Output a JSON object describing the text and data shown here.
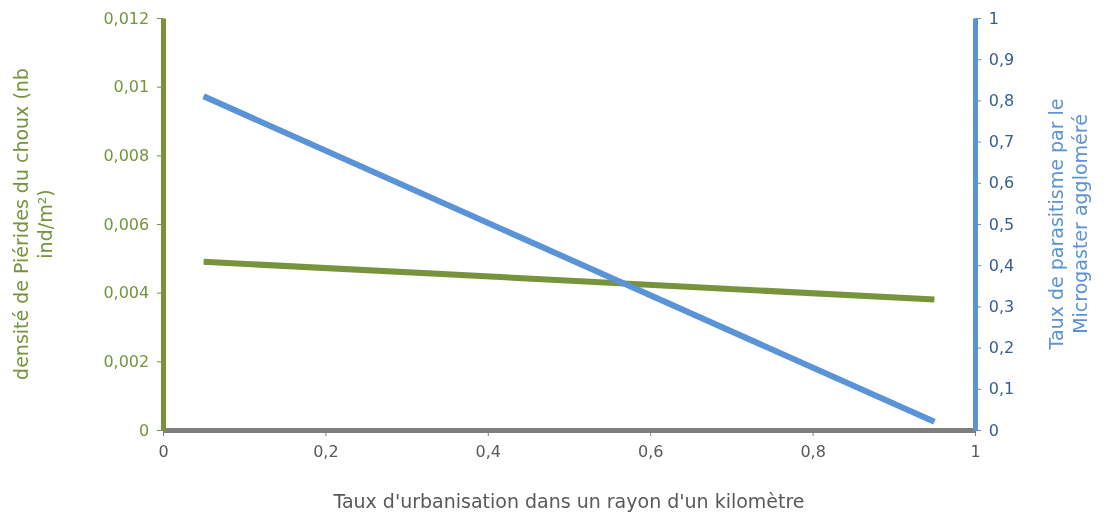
{
  "chart_data": {
    "type": "line",
    "xlabel": "Taux d'urbanisation dans un rayon d'un kilomètre",
    "ylabel": "densité de Piérides du choux (nb ind/m²)",
    "y2label": "Taux de parasitisme par le Microgaster aggloméré",
    "x": [
      0.05,
      0.95
    ],
    "series": [
      {
        "color": "#77933c",
        "values": [
          0.0049,
          0.0038
        ]
      },
      {
        "color": "#5b93d8",
        "values": [
          0.81,
          0.02
        ],
        "axis": "y2"
      }
    ],
    "xlim": [
      0,
      1
    ],
    "xticks": [
      0,
      {
        "value": 0.2,
        "label": "0,2"
      },
      {
        "value": 0.4,
        "label": "0,4"
      },
      {
        "value": 0.6,
        "label": "0,6"
      },
      {
        "value": 0.8,
        "label": "0,8"
      },
      1
    ],
    "ylim": [
      0,
      0.012
    ],
    "yticks": [
      0,
      {
        "value": 0.002,
        "label": "0,002"
      },
      {
        "value": 0.004,
        "label": "0,004"
      },
      {
        "value": 0.006,
        "label": "0,006"
      },
      {
        "value": 0.008,
        "label": "0,008"
      },
      {
        "value": 0.01,
        "label": "0,01"
      },
      {
        "value": 0.012,
        "label": "0,012"
      }
    ],
    "y2lim": [
      0,
      1
    ],
    "y2ticks": [
      0,
      {
        "value": 0.1,
        "label": "0,1"
      },
      {
        "value": 0.2,
        "label": "0,2"
      },
      {
        "value": 0.3,
        "label": "0,3"
      },
      {
        "value": 0.4,
        "label": "0,4"
      },
      {
        "value": 0.5,
        "label": "0,5"
      },
      {
        "value": 0.6,
        "label": "0,6"
      },
      {
        "value": 0.7,
        "label": "0,7"
      },
      {
        "value": 0.8,
        "label": "0,8"
      },
      {
        "value": 0.9,
        "label": "0,9"
      },
      1
    ],
    "grid": false,
    "marker": "none",
    "line_style": "solid"
  }
}
